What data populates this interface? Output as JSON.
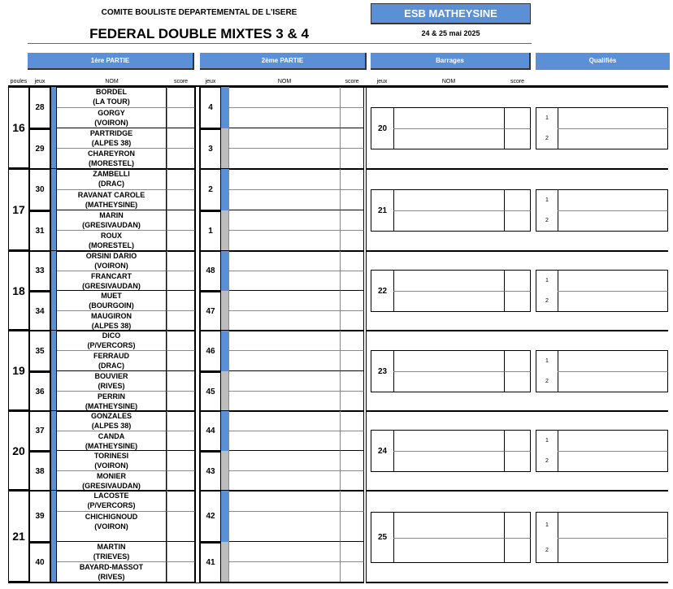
{
  "header": {
    "committee": "COMITE BOULISTE DEPARTEMENTAL DE L'ISERE",
    "title": "FEDERAL DOUBLE MIXTES 3 & 4",
    "club": "ESB MATHEYSINE",
    "dates": "24 & 25 mai 2025"
  },
  "sections": {
    "first": "1ère PARTIE",
    "second": "2ème PARTIE",
    "barrages": "Barrages",
    "qualified": "Qualifiés"
  },
  "columns": {
    "poules": "poules",
    "jeux": "jeux",
    "nom": "NOM",
    "score": "score"
  },
  "colors": {
    "accent": "#5b8fd6",
    "gray_bar": "#bdbdbd"
  },
  "groups": [
    {
      "poule": "16",
      "barrage": "20",
      "matches": [
        {
          "jeu": "28",
          "jeu2": "4",
          "teams": [
            {
              "name": "BORDEL",
              "club": "(LA TOUR)"
            },
            {
              "name": "GORGY",
              "club": "(VOIRON)"
            }
          ]
        },
        {
          "jeu": "29",
          "jeu2": "3",
          "teams": [
            {
              "name": "PARTRIDGE",
              "club": "(ALPES 38)"
            },
            {
              "name": "CHAREYRON",
              "club": "(MORESTEL)"
            }
          ]
        }
      ]
    },
    {
      "poule": "17",
      "barrage": "21",
      "matches": [
        {
          "jeu": "30",
          "jeu2": "2",
          "teams": [
            {
              "name": "ZAMBELLI",
              "club": "(DRAC)"
            },
            {
              "name": "RAVANAT CAROLE",
              "club": "(MATHEYSINE)"
            }
          ]
        },
        {
          "jeu": "31",
          "jeu2": "1",
          "teams": [
            {
              "name": "MARIN",
              "club": "(GRESIVAUDAN)"
            },
            {
              "name": "ROUX",
              "club": "(MORESTEL)"
            }
          ]
        }
      ]
    },
    {
      "poule": "18",
      "barrage": "22",
      "matches": [
        {
          "jeu": "33",
          "jeu2": "48",
          "teams": [
            {
              "name": "ORSINI DARIO",
              "club": "(VOIRON)"
            },
            {
              "name": "FRANCART",
              "club": "(GRESIVAUDAN)"
            }
          ]
        },
        {
          "jeu": "34",
          "jeu2": "47",
          "teams": [
            {
              "name": "MUET",
              "club": "(BOURGOIN)"
            },
            {
              "name": "MAUGIRON",
              "club": "(ALPES 38)"
            }
          ]
        }
      ]
    },
    {
      "poule": "19",
      "barrage": "23",
      "matches": [
        {
          "jeu": "35",
          "jeu2": "46",
          "teams": [
            {
              "name": "DICO",
              "club": "(P/VERCORS)"
            },
            {
              "name": "FERRAUD",
              "club": "(DRAC)"
            }
          ]
        },
        {
          "jeu": "36",
          "jeu2": "45",
          "teams": [
            {
              "name": "BOUVIER",
              "club": "(RIVES)"
            },
            {
              "name": "PERRIN",
              "club": "(MATHEYSINE)"
            }
          ]
        }
      ]
    },
    {
      "poule": "20",
      "barrage": "24",
      "matches": [
        {
          "jeu": "37",
          "jeu2": "44",
          "teams": [
            {
              "name": "GONZALES",
              "club": "(ALPES 38)"
            },
            {
              "name": "CANDA",
              "club": "(MATHEYSINE)"
            }
          ]
        },
        {
          "jeu": "38",
          "jeu2": "43",
          "teams": [
            {
              "name": "TORINESI",
              "club": "(VOIRON)"
            },
            {
              "name": "MONIER",
              "club": "(GRESIVAUDAN)"
            }
          ]
        }
      ]
    },
    {
      "poule": "21",
      "barrage": "25",
      "matches": [
        {
          "jeu": "39",
          "jeu2": "42",
          "teams": [
            {
              "name": "LACOSTE",
              "club": "(P/VERCORS)"
            },
            {
              "name": "CHICHIGNOUD",
              "club": "(VOIRON)"
            }
          ]
        },
        {
          "jeu": "40",
          "jeu2": "41",
          "teams": [
            {
              "name": "MARTIN",
              "club": "(TRIEVES)"
            },
            {
              "name": "BAYARD-MASSOT",
              "club": "(RIVES)"
            }
          ]
        }
      ]
    }
  ],
  "qualified_ranks": [
    "1",
    "2"
  ]
}
